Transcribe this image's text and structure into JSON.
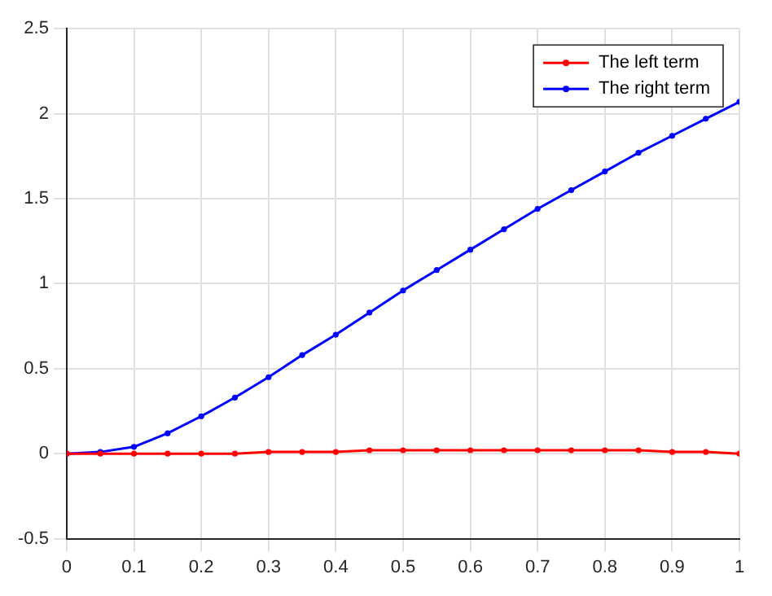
{
  "chart_data": {
    "type": "line",
    "x": [
      0,
      0.05,
      0.1,
      0.15,
      0.2,
      0.25,
      0.3,
      0.35,
      0.4,
      0.45,
      0.5,
      0.55,
      0.6,
      0.65,
      0.7,
      0.75,
      0.8,
      0.85,
      0.9,
      0.95,
      1
    ],
    "series": [
      {
        "name": "The left term",
        "color": "#ff0000",
        "values": [
          0,
          0,
          0,
          0,
          0,
          0,
          0.01,
          0.01,
          0.01,
          0.02,
          0.02,
          0.02,
          0.02,
          0.02,
          0.02,
          0.02,
          0.02,
          0.02,
          0.01,
          0.01,
          0
        ]
      },
      {
        "name": "The right term",
        "color": "#0000ff",
        "values": [
          0,
          0.01,
          0.04,
          0.12,
          0.22,
          0.33,
          0.45,
          0.58,
          0.7,
          0.83,
          0.96,
          1.08,
          1.2,
          1.32,
          1.44,
          1.55,
          1.66,
          1.77,
          1.87,
          1.97,
          2.07
        ]
      }
    ],
    "xlim": [
      0,
      1
    ],
    "xticks": [
      0,
      0.1,
      0.2,
      0.3,
      0.4,
      0.5,
      0.6,
      0.7,
      0.8,
      0.9,
      1
    ],
    "ylim": [
      -0.5,
      2.5
    ],
    "yticks": [
      -0.5,
      0,
      0.5,
      1,
      1.5,
      2,
      2.5
    ],
    "grid": true,
    "legend": "top right",
    "marker": "circle",
    "line_style": "solid"
  }
}
